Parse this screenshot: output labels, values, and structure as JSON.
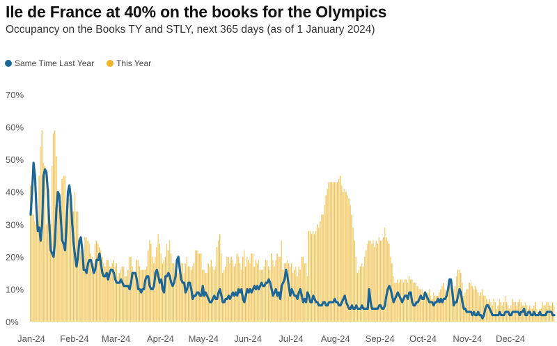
{
  "chart_data": {
    "type": "bar+line",
    "title": "Ile de France at 40% on the books for the Olympics",
    "subtitle": "Occupancy on the Books TY and STLY, next 365 days (as of 1 January 2024)",
    "xlabel": "",
    "ylabel": "",
    "ylim": [
      0,
      70
    ],
    "y_ticks": [
      "0%",
      "10%",
      "20%",
      "30%",
      "40%",
      "50%",
      "60%",
      "70%"
    ],
    "y_tick_values": [
      0,
      10,
      20,
      30,
      40,
      50,
      60,
      70
    ],
    "x_ticks": [
      "Jan-24",
      "Feb-24",
      "Mar-24",
      "Apr-24",
      "May-24",
      "Jun-24",
      "Jul-24",
      "Aug-24",
      "Sep-24",
      "Oct-24",
      "Nov-24",
      "Dec-24"
    ],
    "month_lengths": [
      31,
      29,
      31,
      30,
      31,
      30,
      31,
      31,
      30,
      31,
      30,
      31
    ],
    "grid": false,
    "legend_position": "top-left",
    "series": [
      {
        "name": "Same Time Last Year",
        "type": "line",
        "color": "#1d6796",
        "values": [
          33,
          40,
          49,
          45,
          35,
          28,
          29,
          25,
          30,
          45,
          47,
          46,
          40,
          30,
          22,
          21,
          20,
          25,
          35,
          40,
          39,
          32,
          25,
          24,
          22,
          30,
          40,
          42,
          38,
          30,
          24,
          20,
          17,
          20,
          25,
          26,
          22,
          16,
          16,
          15,
          18,
          19,
          19,
          17,
          15,
          16,
          19,
          19,
          21,
          18,
          15,
          14,
          14,
          15,
          13,
          15,
          16,
          16,
          15,
          13,
          12,
          12,
          12,
          13,
          12,
          11,
          11,
          11,
          11,
          10,
          12,
          15,
          15,
          15,
          13,
          10,
          10,
          9,
          10,
          10,
          13,
          14,
          14,
          11,
          10,
          10,
          11,
          15,
          16,
          14,
          12,
          13,
          10,
          9,
          14,
          14,
          15,
          14,
          12,
          11,
          12,
          14,
          19,
          20,
          16,
          13,
          12,
          12,
          9,
          10,
          12,
          12,
          10,
          7,
          8,
          8,
          9,
          9,
          8,
          8,
          11,
          8,
          9,
          8,
          7,
          6,
          6,
          7,
          8,
          7,
          7,
          9,
          10,
          8,
          6,
          6,
          7,
          7,
          8,
          7,
          8,
          9,
          8,
          9,
          8,
          10,
          9,
          10,
          7,
          6,
          8,
          10,
          9,
          10,
          9,
          10,
          11,
          10,
          11,
          10,
          11,
          12,
          11,
          11,
          12,
          12,
          13,
          12,
          10,
          8,
          9,
          10,
          8,
          9,
          7,
          11,
          12,
          13,
          16,
          14,
          11,
          8,
          10,
          9,
          8,
          8,
          7,
          9,
          10,
          8,
          6,
          7,
          6,
          9,
          8,
          6,
          6,
          8,
          7,
          6,
          6,
          5,
          5,
          5,
          6,
          6,
          5,
          5,
          6,
          6,
          6,
          6,
          7,
          6,
          6,
          5,
          5,
          6,
          7,
          8,
          6,
          5,
          4,
          4,
          5,
          4,
          4,
          5,
          4,
          4,
          4,
          5,
          4,
          4,
          4,
          4,
          10,
          6,
          4,
          4,
          4,
          4,
          4,
          5,
          5,
          4,
          4,
          5,
          8,
          10,
          11,
          10,
          8,
          6,
          7,
          8,
          9,
          8,
          7,
          6,
          7,
          8,
          8,
          7,
          9,
          9,
          6,
          5,
          5,
          6,
          6,
          7,
          8,
          7,
          7,
          9,
          8,
          7,
          6,
          6,
          6,
          5,
          6,
          6,
          7,
          6,
          7,
          6,
          7,
          7,
          8,
          10,
          13,
          13,
          9,
          5,
          6,
          6,
          8,
          10,
          9,
          6,
          4,
          4,
          3,
          3,
          3,
          3,
          2,
          3,
          2,
          2,
          3,
          2,
          2,
          1,
          2,
          4,
          5,
          5,
          4,
          3,
          2,
          2,
          2,
          2,
          2,
          3,
          2,
          2,
          2,
          3,
          3,
          3,
          2,
          2,
          3,
          3,
          3,
          3,
          3,
          2,
          3,
          3,
          4,
          2,
          2,
          3,
          3,
          2,
          2,
          3,
          2,
          2,
          2,
          3,
          2,
          2,
          2,
          2,
          3,
          3,
          3,
          3,
          2,
          2
        ]
      },
      {
        "name": "This Year",
        "type": "bar",
        "color": "#f0b429",
        "values": [
          42,
          42,
          33,
          31,
          30,
          31,
          45,
          54,
          59,
          49,
          48,
          30,
          41,
          41,
          30,
          48,
          58,
          59,
          51,
          36,
          36,
          29,
          44,
          45,
          45,
          30,
          37,
          38,
          37,
          30,
          34,
          40,
          34,
          34,
          25,
          22,
          20,
          21,
          26,
          26,
          25,
          24,
          21,
          20,
          18,
          24,
          25,
          24,
          23,
          22,
          20,
          18,
          17,
          19,
          19,
          17,
          17,
          18,
          19,
          17,
          18,
          14,
          15,
          16,
          17,
          17,
          14,
          14,
          16,
          20,
          20,
          17,
          15,
          15,
          19,
          19,
          17,
          16,
          16,
          16,
          16,
          17,
          22,
          25,
          24,
          20,
          18,
          20,
          23,
          27,
          24,
          21,
          18,
          19,
          20,
          24,
          22,
          25,
          21,
          18,
          18,
          16,
          16,
          15,
          16,
          18,
          18,
          15,
          18,
          20,
          17,
          17,
          16,
          17,
          18,
          22,
          22,
          21,
          21,
          21,
          16,
          16,
          15,
          15,
          18,
          17,
          19,
          17,
          16,
          17,
          23,
          25,
          27,
          21,
          15,
          16,
          17,
          20,
          20,
          18,
          20,
          19,
          17,
          18,
          21,
          20,
          18,
          16,
          20,
          22,
          17,
          20,
          19,
          18,
          21,
          21,
          17,
          19,
          18,
          19,
          16,
          16,
          16,
          17,
          19,
          19,
          17,
          16,
          21,
          19,
          17,
          19,
          21,
          20,
          20,
          25,
          16,
          18,
          18,
          19,
          18,
          17,
          18,
          15,
          16,
          17,
          14,
          17,
          16,
          20,
          20,
          18,
          18,
          14,
          28,
          28,
          27,
          28,
          27,
          28,
          30,
          29,
          31,
          33,
          33,
          36,
          39,
          41,
          43,
          43,
          43,
          43,
          43,
          43,
          43,
          44,
          45,
          42,
          40,
          41,
          40,
          39,
          38,
          36,
          33,
          29,
          25,
          20,
          15,
          16,
          17,
          18,
          17,
          20,
          22,
          24,
          25,
          25,
          24,
          25,
          23,
          25,
          24,
          26,
          25,
          25,
          26,
          29,
          26,
          25,
          24,
          20,
          18,
          14,
          12,
          12,
          13,
          12,
          13,
          13,
          12,
          13,
          13,
          12,
          14,
          13,
          13,
          12,
          12,
          11,
          11,
          10,
          10,
          10,
          9,
          9,
          8,
          9,
          10,
          8,
          7,
          9,
          8,
          8,
          8,
          9,
          10,
          11,
          12,
          10,
          9,
          10,
          11,
          13,
          12,
          10,
          11,
          14,
          16,
          16,
          15,
          12,
          8,
          9,
          10,
          10,
          12,
          12,
          11,
          10,
          11,
          10,
          9,
          8,
          9,
          10,
          8,
          8,
          7,
          6,
          7,
          6,
          5,
          7,
          6,
          4,
          5,
          7,
          6,
          5,
          6,
          8,
          6,
          5,
          4,
          5,
          7,
          6,
          6,
          5,
          6,
          7,
          6,
          5,
          5,
          6,
          5,
          4,
          5,
          4,
          4,
          5,
          6,
          4,
          3,
          4,
          4,
          6,
          5,
          5,
          6,
          6,
          5,
          5,
          6,
          5
        ]
      }
    ]
  }
}
